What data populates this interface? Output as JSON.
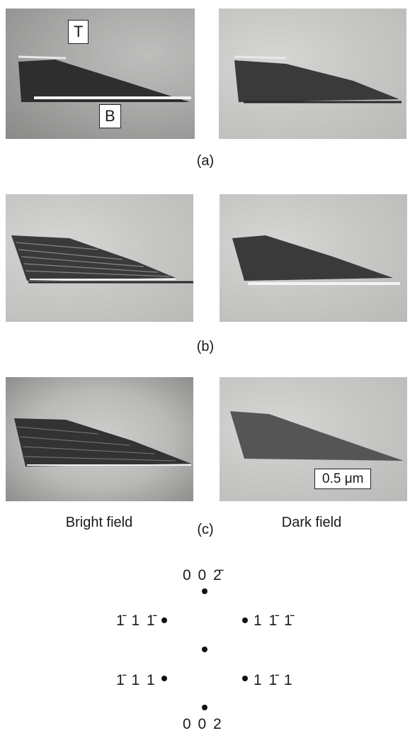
{
  "panels": {
    "a": {
      "caption": "(a)",
      "label_T": "T",
      "label_B": "B"
    },
    "b": {
      "caption": "(b)"
    },
    "c": {
      "caption": "(c)"
    }
  },
  "column_labels": {
    "left": "Bright field",
    "right": "Dark field"
  },
  "scale_bar": {
    "label": "0.5 μm"
  },
  "diffraction_pattern": {
    "top": "0 0 2̄",
    "upper_left": "1̄ 1 1̄",
    "upper_right": "1 1̄ 1̄",
    "lower_left": "1̄ 1 1",
    "lower_right": "1 1̄ 1",
    "bottom": "0 0 2"
  }
}
